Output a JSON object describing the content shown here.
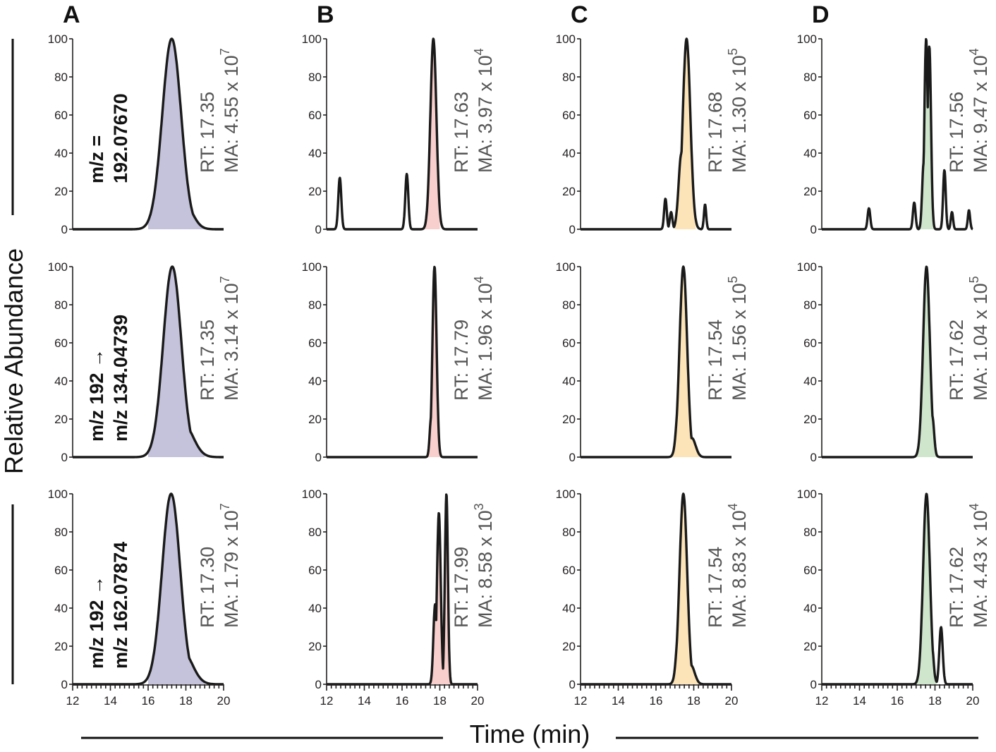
{
  "chart_data": {
    "type": "line",
    "ylabel": "Relative Abundance",
    "xlabel": "Time (min)",
    "xlim": [
      12,
      20
    ],
    "ylim": [
      0,
      100
    ],
    "xticks": [
      12,
      14,
      16,
      18,
      20
    ],
    "yticks": [
      0,
      20,
      40,
      60,
      80,
      100
    ],
    "columns": [
      {
        "letter": "A",
        "fill": "#c5c3dc"
      },
      {
        "letter": "B",
        "fill": "#f8cfcc"
      },
      {
        "letter": "C",
        "fill": "#fce4b8"
      },
      {
        "letter": "D",
        "fill": "#cfe6cd"
      }
    ],
    "rows": [
      {
        "label_line1": "m/z =",
        "label_line2": "192.07670"
      },
      {
        "label_line1": "m/z 192 →",
        "label_line2": "m/z 134.04739"
      },
      {
        "label_line1": "m/z 192 →",
        "label_line2": "m/z 162.07874"
      }
    ],
    "panels": [
      {
        "col": 0,
        "row": 0,
        "rt": "RT: 17.35",
        "ma": "MA: 4.55 x 10",
        "exp": "7",
        "peaks": [
          [
            17.25,
            100,
            0.5
          ],
          [
            16.95,
            38,
            0.3
          ],
          [
            17.9,
            14,
            0.45
          ],
          [
            18.45,
            4,
            0.25
          ]
        ],
        "fill_range": [
          16.0,
          19.0
        ]
      },
      {
        "col": 1,
        "row": 0,
        "rt": "RT: 17.63",
        "ma": "MA: 3.97 x 10",
        "exp": "4",
        "peaks": [
          [
            17.66,
            100,
            0.16
          ],
          [
            17.48,
            20,
            0.1
          ],
          [
            12.7,
            27,
            0.08
          ],
          [
            16.25,
            29,
            0.08
          ]
        ],
        "fill_range": [
          17.2,
          18.0
        ]
      },
      {
        "col": 2,
        "row": 0,
        "rt": "RT: 17.68",
        "ma": "MA: 1.30 x 10",
        "exp": "5",
        "peaks": [
          [
            17.62,
            100,
            0.2
          ],
          [
            17.35,
            40,
            0.15
          ],
          [
            16.5,
            16,
            0.07
          ],
          [
            16.8,
            9,
            0.07
          ],
          [
            18.6,
            13,
            0.06
          ]
        ],
        "fill_range": [
          17.0,
          18.1
        ]
      },
      {
        "col": 3,
        "row": 0,
        "rt": "RT: 17.56",
        "ma": "MA: 9.47 x 10",
        "exp": "4",
        "peaks": [
          [
            17.53,
            100,
            0.09
          ],
          [
            17.7,
            96,
            0.09
          ],
          [
            17.4,
            35,
            0.08
          ],
          [
            18.5,
            31,
            0.07
          ],
          [
            14.5,
            11,
            0.07
          ],
          [
            16.9,
            14,
            0.07
          ],
          [
            18.9,
            9,
            0.06
          ],
          [
            19.8,
            10,
            0.06
          ]
        ],
        "fill_range": [
          17.2,
          18.1
        ]
      },
      {
        "col": 0,
        "row": 1,
        "rt": "RT: 17.35",
        "ma": "MA: 3.14 x 10",
        "exp": "7",
        "peaks": [
          [
            17.28,
            100,
            0.48
          ],
          [
            16.95,
            35,
            0.3
          ],
          [
            17.9,
            17,
            0.5
          ],
          [
            18.4,
            5,
            0.3
          ]
        ],
        "fill_range": [
          16.0,
          19.0
        ]
      },
      {
        "col": 1,
        "row": 1,
        "rt": "RT: 17.79",
        "ma": "MA: 1.96 x 10",
        "exp": "4",
        "peaks": [
          [
            17.72,
            100,
            0.11
          ],
          [
            17.55,
            22,
            0.08
          ]
        ],
        "fill_range": [
          17.3,
          18.0
        ]
      },
      {
        "col": 2,
        "row": 1,
        "rt": "RT: 17.54",
        "ma": "MA: 1.56 x 10",
        "exp": "5",
        "peaks": [
          [
            17.45,
            100,
            0.2
          ],
          [
            17.25,
            35,
            0.15
          ],
          [
            17.9,
            10,
            0.2
          ]
        ],
        "fill_range": [
          16.8,
          18.3
        ]
      },
      {
        "col": 3,
        "row": 1,
        "rt": "RT: 17.62",
        "ma": "MA: 1.04 x 10",
        "exp": "5",
        "peaks": [
          [
            17.55,
            100,
            0.18
          ],
          [
            17.85,
            22,
            0.1
          ]
        ],
        "fill_range": [
          17.0,
          18.1
        ]
      },
      {
        "col": 0,
        "row": 2,
        "rt": "RT: 17.30",
        "ma": "MA: 1.79 x 10",
        "exp": "7",
        "peaks": [
          [
            17.22,
            100,
            0.48
          ],
          [
            16.9,
            38,
            0.3
          ],
          [
            17.85,
            17,
            0.5
          ],
          [
            18.35,
            5,
            0.3
          ]
        ],
        "fill_range": [
          16.0,
          19.0
        ]
      },
      {
        "col": 1,
        "row": 2,
        "rt": "RT: 17.99",
        "ma": "MA: 8.58 x 10",
        "exp": "3",
        "peaks": [
          [
            17.95,
            90,
            0.1
          ],
          [
            18.35,
            100,
            0.08
          ],
          [
            17.75,
            42,
            0.09
          ]
        ],
        "fill_range": [
          17.4,
          18.6
        ]
      },
      {
        "col": 2,
        "row": 2,
        "rt": "RT: 17.54",
        "ma": "MA: 8.83 x 10",
        "exp": "4",
        "peaks": [
          [
            17.45,
            100,
            0.2
          ],
          [
            17.25,
            35,
            0.15
          ],
          [
            17.85,
            10,
            0.2
          ]
        ],
        "fill_range": [
          16.8,
          18.3
        ]
      },
      {
        "col": 3,
        "row": 2,
        "rt": "RT: 17.62",
        "ma": "MA: 4.43 x 10",
        "exp": "4",
        "peaks": [
          [
            17.55,
            100,
            0.18
          ],
          [
            17.82,
            22,
            0.1
          ],
          [
            18.32,
            30,
            0.09
          ]
        ],
        "fill_range": [
          17.0,
          18.1
        ]
      }
    ]
  }
}
